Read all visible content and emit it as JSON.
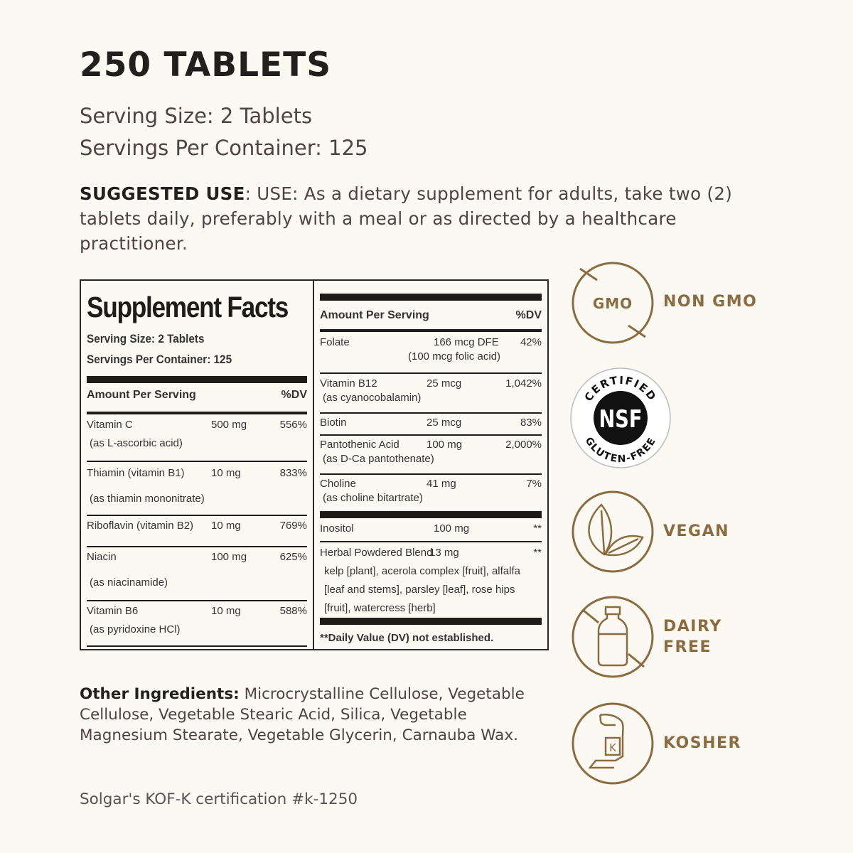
{
  "title": "250 TABLETS",
  "serving_size": "Serving Size: 2 Tablets",
  "servings_per_container": "Servings Per Container: 125",
  "suggested_use": {
    "label": "SUGGESTED USE",
    "text": ": USE: As a dietary supplement for adults, take two (2) tablets daily, preferably with a meal or as directed by a healthcare practitioner."
  },
  "facts": {
    "title": "Supplement Facts",
    "serving_size": "Serving Size: 2 Tablets",
    "servings_per_container": "Servings Per Container: 125",
    "amount_header": "Amount Per Serving",
    "dv_header": "%DV",
    "left_rows": [
      {
        "name": "Vitamin C",
        "sub": "(as L-ascorbic acid)",
        "amount": "500 mg",
        "dv": "556%"
      },
      {
        "name": "Thiamin (vitamin B1)",
        "sub": "(as thiamin mononitrate)",
        "amount": "10 mg",
        "dv": "833%"
      },
      {
        "name": "Riboflavin (vitamin B2)",
        "sub": "",
        "amount": "10 mg",
        "dv": "769%"
      },
      {
        "name": "Niacin",
        "sub": "(as niacinamide)",
        "amount": "100 mg",
        "dv": "625%"
      },
      {
        "name": "Vitamin B6",
        "sub": "(as pyridoxine HCl)",
        "amount": "10 mg",
        "dv": "588%"
      }
    ],
    "right_rows": [
      {
        "name": "Folate",
        "sub": "",
        "amount": "166 mcg DFE",
        "amount_sub": "(100 mcg folic acid)",
        "dv": "42%"
      },
      {
        "name": "Vitamin B12",
        "sub": "(as cyanocobalamin)",
        "amount": "25 mcg",
        "dv": "1,042%"
      },
      {
        "name": "Biotin",
        "sub": "",
        "amount": "25 mcg",
        "dv": "83%"
      },
      {
        "name": "Pantothenic Acid",
        "sub": "(as D-Ca pantothenate)",
        "amount": "100 mg",
        "dv": "2,000%"
      },
      {
        "name": "Choline",
        "sub": "(as choline bitartrate)",
        "amount": "41 mg",
        "dv": "7%"
      }
    ],
    "other_rows": [
      {
        "name": "Inositol",
        "sub": "",
        "amount": "100 mg",
        "dv": "**"
      },
      {
        "name": "Herbal Powdered Blend",
        "sub": "kelp [plant], acerola complex [fruit], alfalfa [leaf and stems], parsley [leaf], rose hips [fruit], watercress [herb]",
        "amount": "13 mg",
        "dv": "**"
      }
    ],
    "footnote": "**Daily Value (DV) not established."
  },
  "other_ingredients": {
    "label": "Other Ingredients:",
    "text": " Microcrystalline Cellulose, Vegetable Cellulose, Vegetable Stearic Acid, Silica, Vegetable Magnesium Stearate, Vegetable Glycerin, Carnauba Wax."
  },
  "certification": "Solgar's KOF-K certification #k-1250",
  "badges": [
    {
      "icon": "gmo-crossed-icon",
      "icon_text": "GMO",
      "label": "NON GMO"
    },
    {
      "icon": "nsf-gluten-free-seal",
      "seal_top": "CERTIFIED",
      "seal_center": "NSF",
      "seal_bottom": "GLUTEN-FREE",
      "label": ""
    },
    {
      "icon": "leaf-icon",
      "label": "VEGAN"
    },
    {
      "icon": "milk-bottle-crossed-icon",
      "label": "DAIRY FREE"
    },
    {
      "icon": "kosher-k-icon",
      "icon_text": "K",
      "label": "KOSHER"
    }
  ],
  "colors": {
    "background": "#fcf9f3",
    "accent": "#8a6c42",
    "text": "#231f1c"
  }
}
